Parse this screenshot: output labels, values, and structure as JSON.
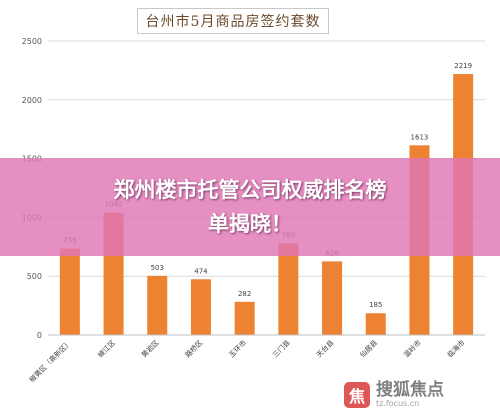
{
  "chart_data": {
    "type": "bar",
    "title": "台州市5月商品房签约套数",
    "categories": [
      "椒黄区（高新区）",
      "椒江区",
      "黄岩区",
      "路桥区",
      "玉环市",
      "三门县",
      "天台县",
      "仙居县",
      "温岭市",
      "临海市"
    ],
    "values": [
      735,
      1040,
      503,
      474,
      282,
      780,
      626,
      185,
      1613,
      2219
    ],
    "value_labels": [
      "735",
      "1040",
      "503",
      "474",
      "282",
      "780",
      "626",
      "185",
      "1613",
      "2219"
    ],
    "yticks": [
      "0",
      "500",
      "1000",
      "1500",
      "2000",
      "2500"
    ],
    "ylim": [
      0,
      2500
    ],
    "xlabel": "",
    "ylabel": "",
    "grid": true,
    "bar_color": "#ee8233",
    "grid_color": "#d9d9d9"
  },
  "banner": {
    "line1": "郑州楼市托管公司权威排名榜",
    "line2": "单揭晓！"
  },
  "watermark": {
    "logo_glyph": "焦",
    "name": "搜狐焦点",
    "url": "tz.focus.cn"
  }
}
